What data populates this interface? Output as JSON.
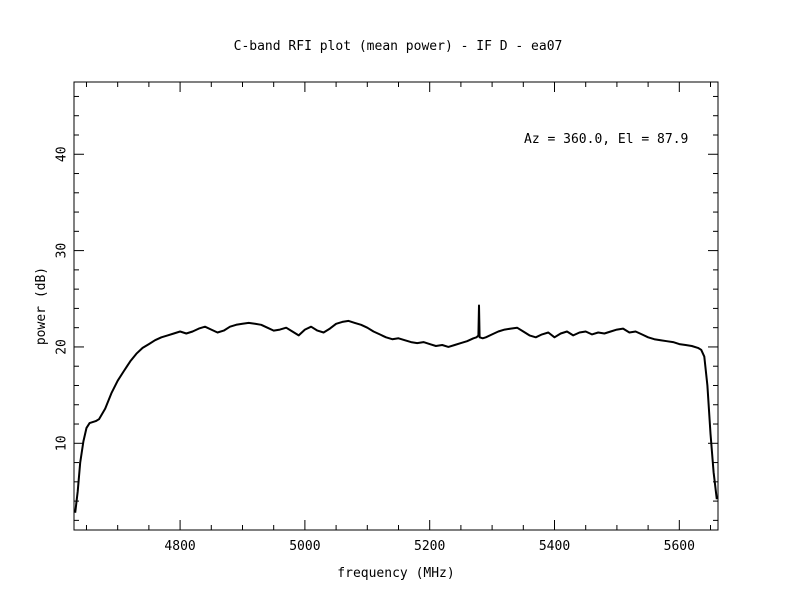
{
  "chart_data": {
    "type": "line",
    "title": "C-band RFI plot (mean power) - IF D - ea07",
    "xlabel": "frequency (MHz)",
    "ylabel": "power (dB)",
    "annotation": "Az = 360.0, El = 87.9",
    "xlim": [
      4630,
      5662
    ],
    "ylim": [
      1,
      47.5
    ],
    "x_ticks": [
      4800,
      5000,
      5200,
      5400,
      5600
    ],
    "y_ticks": [
      10,
      20,
      30,
      40
    ],
    "grid": false,
    "series": [
      {
        "color": "#000000",
        "x": [
          4632,
          4636,
          4640,
          4645,
          4650,
          4655,
          4660,
          4665,
          4670,
          4680,
          4690,
          4700,
          4710,
          4720,
          4730,
          4740,
          4750,
          4760,
          4770,
          4780,
          4790,
          4800,
          4810,
          4820,
          4830,
          4840,
          4850,
          4860,
          4870,
          4880,
          4890,
          4900,
          4910,
          4920,
          4930,
          4940,
          4950,
          4960,
          4970,
          4980,
          4990,
          5000,
          5010,
          5020,
          5030,
          5040,
          5050,
          5060,
          5070,
          5080,
          5090,
          5100,
          5110,
          5120,
          5130,
          5140,
          5150,
          5160,
          5170,
          5180,
          5190,
          5200,
          5210,
          5220,
          5230,
          5240,
          5250,
          5260,
          5270,
          5275,
          5278,
          5279,
          5280,
          5285,
          5290,
          5300,
          5310,
          5320,
          5330,
          5340,
          5350,
          5360,
          5370,
          5380,
          5390,
          5400,
          5410,
          5420,
          5430,
          5440,
          5450,
          5460,
          5470,
          5480,
          5490,
          5500,
          5510,
          5520,
          5530,
          5540,
          5550,
          5560,
          5570,
          5580,
          5590,
          5600,
          5610,
          5620,
          5630,
          5635,
          5640,
          5645,
          5650,
          5655,
          5660
        ],
        "y": [
          2.8,
          5.0,
          8.0,
          10.2,
          11.6,
          12.1,
          12.2,
          12.3,
          12.5,
          13.6,
          15.2,
          16.5,
          17.5,
          18.5,
          19.3,
          19.9,
          20.3,
          20.7,
          21.0,
          21.2,
          21.4,
          21.6,
          21.4,
          21.6,
          21.9,
          22.1,
          21.8,
          21.5,
          21.7,
          22.1,
          22.3,
          22.4,
          22.5,
          22.4,
          22.3,
          22.0,
          21.7,
          21.8,
          22.0,
          21.6,
          21.2,
          21.8,
          22.1,
          21.7,
          21.5,
          21.9,
          22.4,
          22.6,
          22.7,
          22.5,
          22.3,
          22.0,
          21.6,
          21.3,
          21.0,
          20.8,
          20.9,
          20.7,
          20.5,
          20.4,
          20.5,
          20.3,
          20.1,
          20.2,
          20.0,
          20.2,
          20.4,
          20.6,
          20.9,
          21.0,
          21.2,
          24.3,
          21.0,
          20.9,
          21.0,
          21.3,
          21.6,
          21.8,
          21.9,
          22.0,
          21.6,
          21.2,
          21.0,
          21.3,
          21.5,
          21.0,
          21.4,
          21.6,
          21.2,
          21.5,
          21.6,
          21.3,
          21.5,
          21.4,
          21.6,
          21.8,
          21.9,
          21.5,
          21.6,
          21.3,
          21.0,
          20.8,
          20.7,
          20.6,
          20.5,
          20.3,
          20.2,
          20.1,
          19.9,
          19.7,
          19.0,
          16.0,
          11.0,
          7.0,
          4.2
        ]
      }
    ]
  }
}
